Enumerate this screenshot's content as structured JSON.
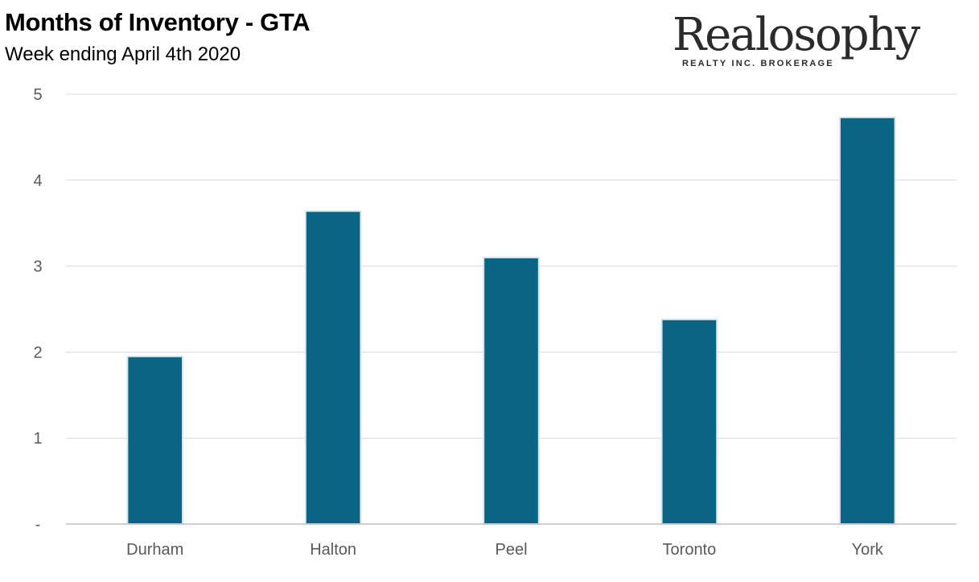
{
  "header": {
    "title": "Months of Inventory - GTA",
    "subtitle": "Week ending April 4th 2020"
  },
  "logo": {
    "name": "Realosophy",
    "tagline": "REALTY INC. BROKERAGE"
  },
  "chart_data": {
    "type": "bar",
    "title": "Months of Inventory - GTA",
    "subtitle": "Week ending April 4th 2020",
    "categories": [
      "Durham",
      "Halton",
      "Peel",
      "Toronto",
      "York"
    ],
    "values": [
      1.95,
      3.64,
      3.1,
      2.38,
      4.73
    ],
    "xlabel": "",
    "ylabel": "",
    "ylim": [
      0,
      5
    ],
    "yticks": [
      0,
      1,
      2,
      3,
      4,
      5
    ],
    "ytick_labels": [
      "-",
      "1",
      "2",
      "3",
      "4",
      "5"
    ],
    "grid": true,
    "legend": "none",
    "colors": {
      "bar": "#0a6483",
      "bar_edge": "#d6e6ec",
      "grid": "#d9d9d9",
      "axis": "#bfbfbf",
      "tick_text": "#595959"
    }
  }
}
